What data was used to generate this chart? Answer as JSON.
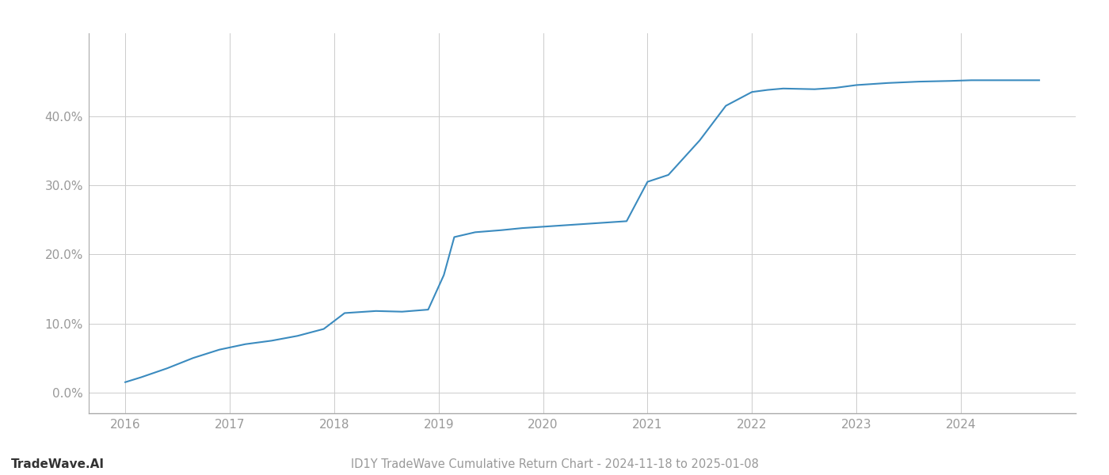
{
  "title": "ID1Y TradeWave Cumulative Return Chart - 2024-11-18 to 2025-01-08",
  "watermark": "TradeWave.AI",
  "x_values": [
    2016.0,
    2016.15,
    2016.4,
    2016.65,
    2016.9,
    2017.15,
    2017.4,
    2017.65,
    2017.9,
    2018.1,
    2018.4,
    2018.65,
    2018.9,
    2019.05,
    2019.15,
    2019.35,
    2019.6,
    2019.8,
    2020.0,
    2020.2,
    2020.5,
    2020.8,
    2021.0,
    2021.2,
    2021.5,
    2021.75,
    2022.0,
    2022.15,
    2022.3,
    2022.6,
    2022.8,
    2023.0,
    2023.3,
    2023.6,
    2023.9,
    2024.1,
    2024.4,
    2024.75
  ],
  "y_values": [
    1.5,
    2.2,
    3.5,
    5.0,
    6.2,
    7.0,
    7.5,
    8.2,
    9.2,
    11.5,
    11.8,
    11.7,
    12.0,
    17.0,
    22.5,
    23.2,
    23.5,
    23.8,
    24.0,
    24.2,
    24.5,
    24.8,
    30.5,
    31.5,
    36.5,
    41.5,
    43.5,
    43.8,
    44.0,
    43.9,
    44.1,
    44.5,
    44.8,
    45.0,
    45.1,
    45.2,
    45.2,
    45.2
  ],
  "line_color": "#3b8bbf",
  "line_width": 1.5,
  "background_color": "#ffffff",
  "grid_color": "#cccccc",
  "ytick_labels": [
    "0.0%",
    "10.0%",
    "20.0%",
    "30.0%",
    "40.0%"
  ],
  "ytick_values": [
    0,
    10,
    20,
    30,
    40
  ],
  "xtick_values": [
    2016,
    2017,
    2018,
    2019,
    2020,
    2021,
    2022,
    2023,
    2024
  ],
  "ylim": [
    -3,
    52
  ],
  "xlim": [
    2015.65,
    2025.1
  ],
  "title_fontsize": 10.5,
  "tick_fontsize": 11,
  "watermark_fontsize": 11,
  "axis_color": "#333333",
  "tick_color": "#999999",
  "spine_color": "#aaaaaa"
}
